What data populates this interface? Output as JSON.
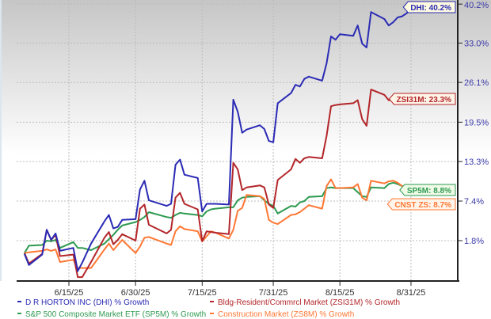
{
  "chart_data": {
    "type": "line",
    "title": "",
    "xlabel": "",
    "ylabel": "",
    "y_scale": "log (growth)",
    "grid": true,
    "legend_placement": "bottom",
    "y_ticks": [
      "1.8%",
      "7.4%",
      "13.3%",
      "19.5%",
      "26.1%",
      "33.0%",
      "40.2%"
    ],
    "y_tick_values": [
      1.8,
      7.4,
      13.3,
      19.5,
      26.1,
      33.0,
      40.2
    ],
    "x_ticks": [
      "6/15/25",
      "6/30/25",
      "7/15/25",
      "7/31/25",
      "8/15/25",
      "8/31/25"
    ],
    "x_tick_dates": [
      "2025-06-15",
      "2025-06-30",
      "2025-07-15",
      "2025-07-31",
      "2025-08-15",
      "2025-08-31"
    ],
    "x_range": [
      "2025-06-05",
      "2025-09-10"
    ],
    "dates": [
      "2025-06-05",
      "2025-06-06",
      "2025-06-09",
      "2025-06-10",
      "2025-06-11",
      "2025-06-12",
      "2025-06-13",
      "2025-06-16",
      "2025-06-17",
      "2025-06-18",
      "2025-06-20",
      "2025-06-23",
      "2025-06-24",
      "2025-06-25",
      "2025-06-26",
      "2025-06-27",
      "2025-06-30",
      "2025-07-01",
      "2025-07-02",
      "2025-07-03",
      "2025-07-07",
      "2025-07-08",
      "2025-07-09",
      "2025-07-10",
      "2025-07-11",
      "2025-07-14",
      "2025-07-15",
      "2025-07-16",
      "2025-07-17",
      "2025-07-18",
      "2025-07-21",
      "2025-07-22",
      "2025-07-23",
      "2025-07-24",
      "2025-07-25",
      "2025-07-28",
      "2025-07-29",
      "2025-07-30",
      "2025-07-31",
      "2025-08-01",
      "2025-08-04",
      "2025-08-05",
      "2025-08-06",
      "2025-08-07",
      "2025-08-08",
      "2025-08-11",
      "2025-08-12",
      "2025-08-13",
      "2025-08-14",
      "2025-08-15",
      "2025-08-18",
      "2025-08-19",
      "2025-08-20",
      "2025-08-21",
      "2025-08-22",
      "2025-08-25",
      "2025-08-26",
      "2025-08-27",
      "2025-08-28",
      "2025-08-29",
      "2025-09-02"
    ],
    "series": [
      {
        "name": "D R HORTON INC (DHI) % Growth",
        "tag": "DHI: 40.2%",
        "color": "#2b2bb5",
        "values": [
          0.0,
          -1.5,
          -0.1,
          3.3,
          1.9,
          2.8,
          0.4,
          0.8,
          -2.3,
          -1.2,
          1.4,
          4.5,
          5.4,
          3.5,
          3.7,
          4.7,
          4.8,
          9.1,
          10.4,
          7.5,
          6.7,
          7.0,
          12.8,
          13.6,
          11.3,
          10.8,
          5.9,
          7.0,
          7.0,
          7.0,
          6.9,
          23.2,
          21.2,
          17.8,
          18.3,
          19.0,
          18.4,
          16.5,
          16.3,
          22.6,
          24.3,
          25.7,
          25.4,
          26.7,
          27.1,
          26.4,
          29.4,
          34.2,
          33.6,
          34.6,
          34.3,
          36.2,
          32.9,
          32.2,
          38.7,
          37.4,
          36.2,
          36.8,
          37.7,
          37.9,
          40.2
        ]
      },
      {
        "name": "Bldg-Resident/Commrcl Market (ZSI31M) % Growth",
        "tag": "ZSI31M: 23.3%",
        "color": "#b3262a",
        "values": [
          0.1,
          -1.3,
          0.0,
          3.3,
          1.9,
          2.6,
          -0.3,
          -0.1,
          -3.1,
          -3.1,
          -1.1,
          2.2,
          3.0,
          1.3,
          1.9,
          2.7,
          1.8,
          6.3,
          6.9,
          4.0,
          2.8,
          3.3,
          7.9,
          8.6,
          7.0,
          6.2,
          1.7,
          3.1,
          3.0,
          2.9,
          2.7,
          13.1,
          12.1,
          9.0,
          9.4,
          9.7,
          9.4,
          6.9,
          6.4,
          10.5,
          12.1,
          13.7,
          13.1,
          13.8,
          14.0,
          13.8,
          17.3,
          22.1,
          22.3,
          22.4,
          22.6,
          23.1,
          20.0,
          18.9,
          24.9,
          24.0,
          23.1,
          23.2,
          23.5,
          23.5,
          23.3
        ]
      },
      {
        "name": "S&P 500 Composite Market ETF (SP5M) % Growth",
        "tag": "SP5M: 8.8%",
        "color": "#2e9a50",
        "values": [
          0.1,
          1.1,
          1.2,
          1.8,
          1.7,
          1.9,
          0.8,
          1.6,
          0.8,
          0.8,
          0.5,
          1.4,
          2.0,
          2.6,
          3.3,
          3.9,
          4.4,
          4.7,
          5.1,
          5.8,
          5.1,
          5.0,
          5.4,
          5.7,
          5.6,
          5.4,
          5.2,
          5.9,
          6.2,
          6.3,
          6.5,
          6.5,
          7.5,
          7.9,
          8.0,
          8.1,
          7.5,
          7.0,
          6.7,
          5.6,
          6.7,
          6.6,
          7.2,
          7.4,
          8.0,
          8.1,
          9.3,
          9.4,
          9.3,
          9.3,
          9.3,
          8.7,
          8.1,
          8.0,
          9.4,
          9.3,
          9.9,
          10.1,
          9.9,
          9.6,
          8.8
        ]
      },
      {
        "name": "Construction Market (ZS8M) % Growth",
        "tag": "CNST ZS: 8.7%",
        "color": "#ff7733",
        "values": [
          0.1,
          0.2,
          0.4,
          0.6,
          0.4,
          0.6,
          -1.1,
          -0.8,
          -1.9,
          -1.9,
          -1.9,
          0.6,
          1.4,
          0.5,
          1.2,
          1.9,
          0.1,
          1.0,
          2.2,
          2.3,
          1.4,
          1.2,
          3.1,
          3.8,
          3.4,
          3.1,
          1.7,
          2.4,
          3.1,
          2.9,
          2.1,
          3.3,
          6.0,
          6.4,
          8.3,
          8.1,
          7.7,
          4.7,
          4.3,
          4.1,
          5.4,
          5.5,
          5.8,
          6.3,
          6.8,
          6.3,
          9.6,
          10.6,
          9.3,
          9.3,
          9.4,
          9.9,
          7.9,
          7.5,
          10.4,
          10.0,
          10.3,
          10.4,
          10.1,
          9.6,
          8.7
        ]
      }
    ]
  }
}
